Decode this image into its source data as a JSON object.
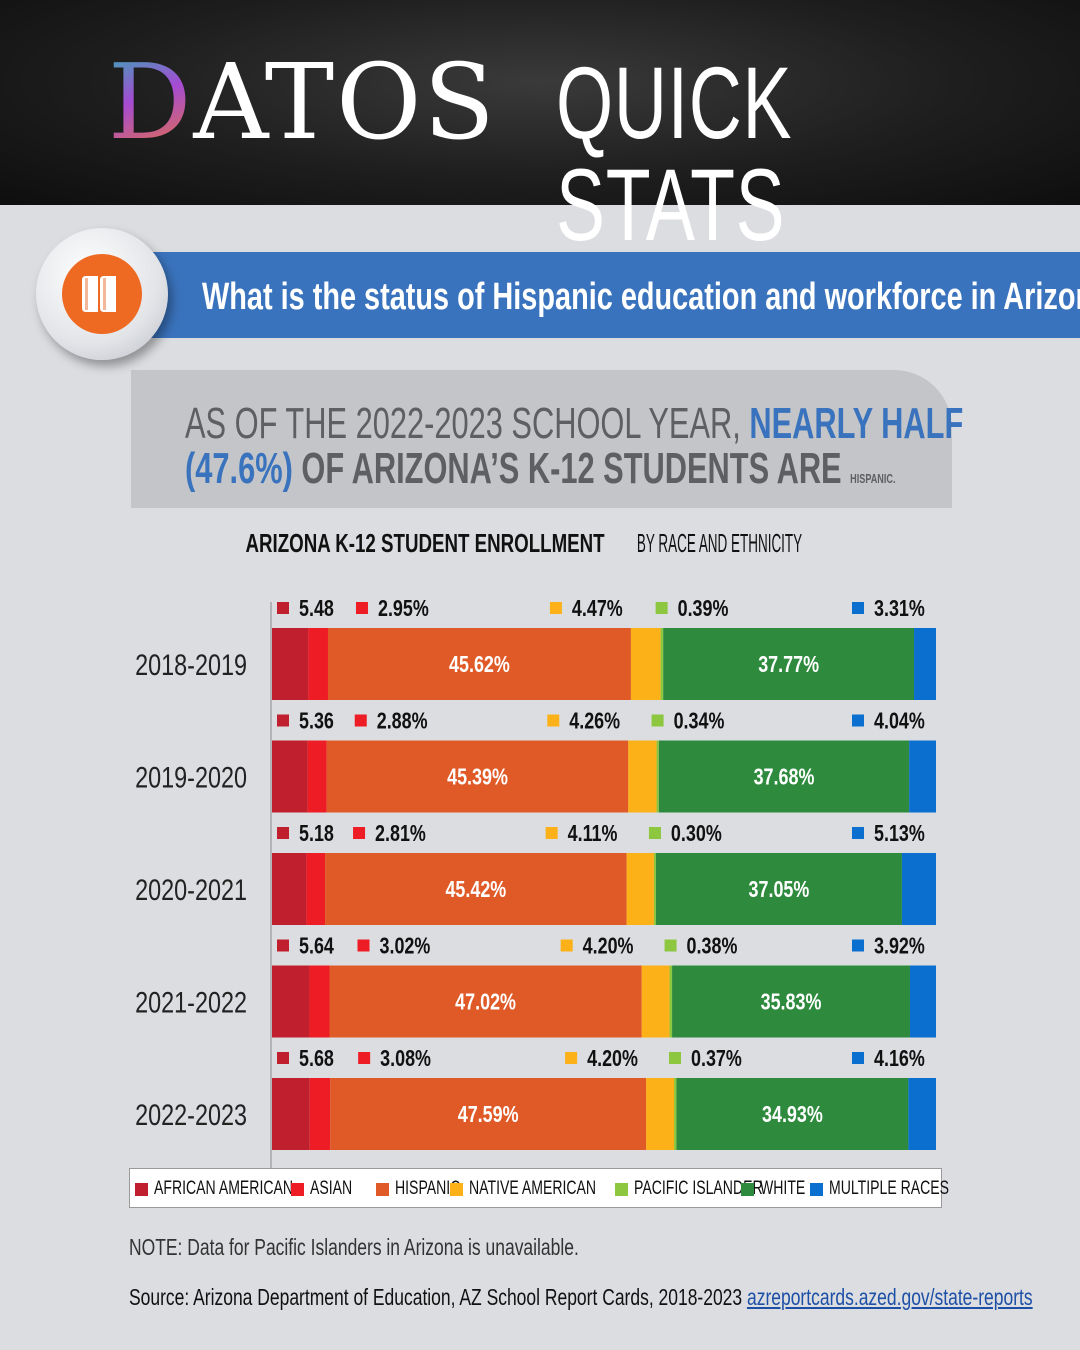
{
  "header": {
    "brand_initial": "D",
    "brand_rest": "ATOS",
    "subtitle": "QUICK STATS"
  },
  "banner": {
    "icon": "books-icon",
    "question": "What is the status of Hispanic education and workforce in Arizona?"
  },
  "callout": {
    "part1": "AS OF THE 2022-2023 SCHOOL YEAR, ",
    "highlight1": "NEARLY HALF",
    "highlight2": "(47.6%)",
    "part2": " OF ARIZONA’S K-12 STUDENTS ARE ",
    "part3": "HISPANIC."
  },
  "chart_title": {
    "bold": "ARIZONA K-12 STUDENT ENROLLMENT",
    "rest": " BY RACE AND ETHNICITY"
  },
  "colors": {
    "african_american": "#c0202d",
    "asian": "#ee1c25",
    "hispanic": "#e05a28",
    "native_american": "#fbb117",
    "pacific_islander": "#8dc63f",
    "white": "#2e8b3e",
    "multiple_races": "#0a6fce"
  },
  "chart_data": {
    "type": "bar",
    "orientation": "horizontal",
    "stacked": true,
    "categories": [
      "2018-2019",
      "2019-2020",
      "2020-2021",
      "2021-2022",
      "2022-2023"
    ],
    "series": [
      {
        "name": "AFRICAN AMERICAN",
        "key": "african_american",
        "values": [
          5.48,
          5.36,
          5.18,
          5.64,
          5.68
        ],
        "labels": [
          "5.48",
          "5.36",
          "5.18",
          "5.64",
          "5.68"
        ]
      },
      {
        "name": "ASIAN",
        "key": "asian",
        "values": [
          2.95,
          2.88,
          2.81,
          3.02,
          3.08
        ],
        "labels": [
          "2.95%",
          "2.88%",
          "2.81%",
          "3.02%",
          "3.08%"
        ]
      },
      {
        "name": "HISPANIC",
        "key": "hispanic",
        "values": [
          45.62,
          45.39,
          45.42,
          47.02,
          47.59
        ],
        "labels": [
          "45.62%",
          "45.39%",
          "45.42%",
          "47.02%",
          "47.59%"
        ]
      },
      {
        "name": "NATIVE AMERICAN",
        "key": "native_american",
        "values": [
          4.47,
          4.26,
          4.11,
          4.2,
          4.2
        ],
        "labels": [
          "4.47%",
          "4.26%",
          "4.11%",
          "4.20%",
          "4.20%"
        ]
      },
      {
        "name": "PACIFIC ISLANDER",
        "key": "pacific_islander",
        "values": [
          0.39,
          0.34,
          0.3,
          0.38,
          0.37
        ],
        "labels": [
          "0.39%",
          "0.34%",
          "0.30%",
          "0.38%",
          "0.37%"
        ]
      },
      {
        "name": "WHITE",
        "key": "white",
        "values": [
          37.77,
          37.68,
          37.05,
          35.83,
          34.93
        ],
        "labels": [
          "37.77%",
          "37.68%",
          "37.05%",
          "35.83%",
          "34.93%"
        ]
      },
      {
        "name": "MULTIPLE RACES",
        "key": "multiple_races",
        "values": [
          3.31,
          4.04,
          5.13,
          3.92,
          4.16
        ],
        "labels": [
          "3.31%",
          "4.04%",
          "5.13%",
          "3.92%",
          "4.16%"
        ]
      }
    ],
    "xlim": [
      0,
      100
    ],
    "legend_position": "bottom",
    "grid": false
  },
  "note": "NOTE: Data for Pacific Islanders in Arizona is unavailable.",
  "source": {
    "text": "Source: Arizona Department of Education, AZ School Report Cards, 2018-2023 ",
    "link": "azreportcards.azed.gov/state-reports"
  }
}
